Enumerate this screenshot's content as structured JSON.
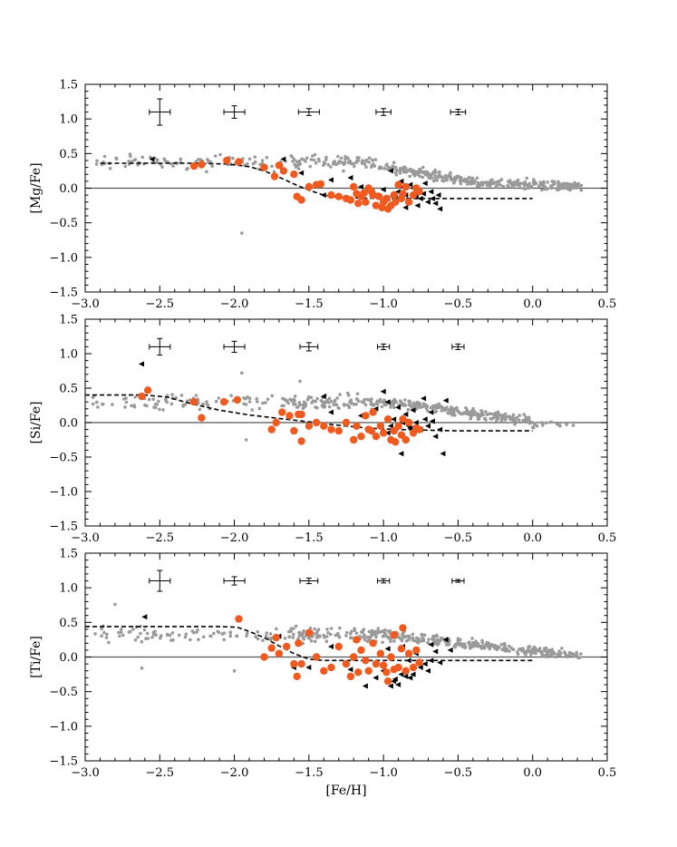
{
  "figure": {
    "xlabel": "[Fe/H]"
  },
  "colors": {
    "field": "#9a9a9a",
    "highlight": "#f05a1e",
    "triangles": "#000000",
    "zero_line": "#555555",
    "axis": "#000000"
  },
  "chart_data": [
    {
      "type": "scatter",
      "ylabel": "[Mg/Fe]",
      "xlim": [
        -3.0,
        0.5
      ],
      "ylim": [
        -1.5,
        1.5
      ],
      "x_ticks": [
        -3.0,
        -2.5,
        -2.0,
        -1.5,
        -1.0,
        -0.5,
        0.0,
        0.5
      ],
      "x_tick_labels": [
        "−3.0",
        "−2.5",
        "−2.0",
        "−1.5",
        "−1.0",
        "−0.5",
        "0.0",
        "0.5"
      ],
      "y_ticks": [
        -1.5,
        -1.0,
        -0.5,
        0.0,
        0.5,
        1.0,
        1.5
      ],
      "y_tick_labels": [
        "−1.5",
        "−1.0",
        "−0.5",
        "0.0",
        "0.5",
        "1.0",
        "1.5"
      ],
      "errorbars": [
        {
          "x": -2.5,
          "y": 1.1,
          "xerr": 0.07,
          "yerr": 0.19
        },
        {
          "x": -2.0,
          "y": 1.1,
          "xerr": 0.07,
          "yerr": 0.09
        },
        {
          "x": -1.5,
          "y": 1.1,
          "xerr": 0.07,
          "yerr": 0.05
        },
        {
          "x": -1.0,
          "y": 1.1,
          "xerr": 0.05,
          "yerr": 0.05
        },
        {
          "x": -0.5,
          "y": 1.1,
          "xerr": 0.05,
          "yerr": 0.04
        }
      ],
      "model_curve": {
        "x": [
          -2.9,
          -2.6,
          -2.3,
          -2.05,
          -1.9,
          -1.8,
          -1.7,
          -1.6,
          -1.5,
          -1.4,
          -1.3,
          -1.2,
          -1.0,
          -0.8,
          -0.6,
          -0.4,
          -0.2,
          0.0
        ],
        "y": [
          0.36,
          0.36,
          0.36,
          0.35,
          0.31,
          0.25,
          0.16,
          0.06,
          -0.03,
          -0.1,
          -0.13,
          -0.14,
          -0.15,
          -0.15,
          -0.15,
          -0.15,
          -0.15,
          -0.15
        ]
      },
      "highlight_points": {
        "x": [
          -2.27,
          -2.22,
          -2.05,
          -1.97,
          -1.8,
          -1.73,
          -1.7,
          -1.67,
          -1.58,
          -1.55,
          -1.5,
          -1.45,
          -1.42,
          -1.35,
          -1.3,
          -1.25,
          -1.2,
          -1.18,
          -1.15,
          -1.12,
          -1.1,
          -1.08,
          -1.05,
          -1.03,
          -1.0,
          -0.98,
          -0.95,
          -0.93,
          -0.9,
          -0.88,
          -0.85,
          -0.83,
          -0.8,
          -0.78,
          -0.76,
          -1.22,
          -1.17,
          -1.07,
          -0.97,
          -0.92,
          -0.87,
          -1.6,
          -1.13,
          -1.01
        ],
        "y": [
          0.32,
          0.34,
          0.4,
          0.38,
          0.3,
          0.17,
          0.33,
          0.25,
          -0.12,
          -0.17,
          0.02,
          0.05,
          0.06,
          -0.1,
          -0.12,
          -0.15,
          0.02,
          -0.08,
          -0.12,
          -0.2,
          0.0,
          -0.05,
          -0.25,
          -0.12,
          -0.2,
          -0.15,
          -0.25,
          -0.1,
          0.05,
          -0.15,
          0.02,
          -0.2,
          -0.1,
          0.0,
          -0.05,
          -0.17,
          -0.22,
          -0.1,
          -0.3,
          -0.2,
          -0.08,
          0.2,
          -0.07,
          -0.28
        ]
      },
      "triangle_points": {
        "x": [
          -2.55,
          -1.67,
          -1.55,
          -1.35,
          -1.15,
          -1.05,
          -1.0,
          -0.97,
          -0.93,
          -0.9,
          -0.87,
          -0.85,
          -0.83,
          -0.8,
          -0.78,
          -0.75,
          -0.73,
          -0.7,
          -0.68,
          -0.65,
          -0.62,
          -1.4,
          -0.95,
          -0.88,
          -0.82,
          -0.77,
          -0.72,
          -0.67,
          -0.85,
          -0.92,
          -1.22,
          -0.63
        ],
        "y": [
          0.42,
          0.42,
          0.22,
          0.12,
          0.02,
          -0.1,
          -0.02,
          -0.15,
          -0.2,
          -0.05,
          0.02,
          -0.1,
          -0.17,
          0.0,
          -0.12,
          -0.15,
          -0.08,
          -0.2,
          -0.05,
          -0.22,
          -0.3,
          -0.1,
          0.25,
          0.1,
          0.05,
          -0.25,
          0.07,
          -0.15,
          -0.28,
          -0.12,
          0.15,
          -0.1
        ]
      }
    },
    {
      "type": "scatter",
      "ylabel": "[Si/Fe]",
      "xlim": [
        -3.0,
        0.5
      ],
      "ylim": [
        -1.5,
        1.5
      ],
      "x_ticks": [
        -3.0,
        -2.5,
        -2.0,
        -1.5,
        -1.0,
        -0.5,
        0.0,
        0.5
      ],
      "x_tick_labels": [
        "−3.0",
        "−2.5",
        "−2.0",
        "−1.5",
        "−1.0",
        "−0.5",
        "0.0",
        "0.5"
      ],
      "y_ticks": [
        -1.5,
        -1.0,
        -0.5,
        0.0,
        0.5,
        1.0,
        1.5
      ],
      "y_tick_labels": [
        "−1.5",
        "−1.0",
        "−0.5",
        "0.0",
        "0.5",
        "1.0",
        "1.5"
      ],
      "errorbars": [
        {
          "x": -2.5,
          "y": 1.1,
          "xerr": 0.07,
          "yerr": 0.12
        },
        {
          "x": -2.0,
          "y": 1.1,
          "xerr": 0.07,
          "yerr": 0.08
        },
        {
          "x": -1.5,
          "y": 1.1,
          "xerr": 0.06,
          "yerr": 0.06
        },
        {
          "x": -1.0,
          "y": 1.1,
          "xerr": 0.04,
          "yerr": 0.04
        },
        {
          "x": -0.5,
          "y": 1.1,
          "xerr": 0.04,
          "yerr": 0.04
        }
      ],
      "model_curve": {
        "x": [
          -3.0,
          -2.6,
          -2.45,
          -2.3,
          -2.1,
          -1.9,
          -1.7,
          -1.5,
          -1.3,
          -1.1,
          -0.9,
          -0.7,
          -0.5,
          -0.3,
          -0.1,
          0.0
        ],
        "y": [
          0.4,
          0.4,
          0.37,
          0.28,
          0.18,
          0.11,
          0.06,
          0.01,
          -0.04,
          -0.08,
          -0.1,
          -0.11,
          -0.12,
          -0.12,
          -0.12,
          -0.12
        ]
      },
      "highlight_points": {
        "x": [
          -2.62,
          -2.58,
          -2.27,
          -2.22,
          -2.07,
          -1.98,
          -1.75,
          -1.72,
          -1.68,
          -1.63,
          -1.6,
          -1.57,
          -1.55,
          -1.5,
          -1.45,
          -1.4,
          -1.35,
          -1.3,
          -1.25,
          -1.2,
          -1.18,
          -1.15,
          -1.12,
          -1.1,
          -1.07,
          -1.05,
          -1.02,
          -1.0,
          -0.97,
          -0.95,
          -0.93,
          -0.9,
          -0.88,
          -0.85,
          -0.83,
          -0.8,
          -0.78,
          -0.76,
          -0.92,
          -0.87,
          -1.08,
          -1.55
        ],
        "y": [
          0.38,
          0.47,
          0.3,
          0.07,
          0.3,
          0.33,
          -0.1,
          0.0,
          0.15,
          0.1,
          -0.12,
          0.12,
          -0.27,
          -0.05,
          0.0,
          -0.05,
          -0.1,
          -0.12,
          0.0,
          -0.25,
          -0.05,
          -0.2,
          0.1,
          -0.1,
          0.15,
          -0.2,
          -0.05,
          -0.15,
          0.05,
          -0.25,
          -0.12,
          -0.05,
          -0.18,
          -0.25,
          0.0,
          -0.15,
          -0.08,
          -0.1,
          -0.28,
          0.05,
          -0.12,
          0.12
        ]
      },
      "triangle_points": {
        "x": [
          -2.62,
          -1.4,
          -1.35,
          -1.15,
          -1.05,
          -1.0,
          -0.97,
          -0.93,
          -0.9,
          -0.87,
          -0.85,
          -0.83,
          -0.8,
          -0.78,
          -0.75,
          -0.72,
          -0.7,
          -0.67,
          -0.65,
          -0.62,
          -0.6,
          -0.58,
          -0.97,
          -0.88,
          -0.82,
          -0.73,
          -0.68,
          -0.85,
          -0.95
        ],
        "y": [
          0.85,
          0.38,
          0.15,
          0.1,
          0.2,
          0.45,
          0.3,
          0.05,
          0.22,
          0.0,
          0.12,
          -0.05,
          0.18,
          0.0,
          -0.1,
          0.05,
          -0.05,
          0.02,
          -0.2,
          -0.1,
          -0.45,
          0.32,
          -0.15,
          -0.45,
          -0.08,
          0.35,
          0.15,
          0.02,
          -0.05
        ]
      }
    },
    {
      "type": "scatter",
      "ylabel": "[Ti/Fe]",
      "xlim": [
        -3.0,
        0.5
      ],
      "ylim": [
        -1.5,
        1.5
      ],
      "x_ticks": [
        -3.0,
        -2.5,
        -2.0,
        -1.5,
        -1.0,
        -0.5,
        0.0,
        0.5
      ],
      "x_tick_labels": [
        "−3.0",
        "−2.5",
        "−2.0",
        "−1.5",
        "−1.0",
        "−0.5",
        "0.0",
        "0.5"
      ],
      "y_ticks": [
        -1.5,
        -1.0,
        -0.5,
        0.0,
        0.5,
        1.0,
        1.5
      ],
      "y_tick_labels": [
        "−1.5",
        "−1.0",
        "−0.5",
        "0.0",
        "0.5",
        "1.0",
        "1.5"
      ],
      "errorbars": [
        {
          "x": -2.5,
          "y": 1.1,
          "xerr": 0.07,
          "yerr": 0.15
        },
        {
          "x": -2.0,
          "y": 1.1,
          "xerr": 0.07,
          "yerr": 0.06
        },
        {
          "x": -1.5,
          "y": 1.1,
          "xerr": 0.06,
          "yerr": 0.04
        },
        {
          "x": -1.0,
          "y": 1.1,
          "xerr": 0.04,
          "yerr": 0.03
        },
        {
          "x": -0.5,
          "y": 1.1,
          "xerr": 0.04,
          "yerr": 0.02
        }
      ],
      "model_curve": {
        "x": [
          -3.0,
          -2.6,
          -2.3,
          -2.1,
          -1.98,
          -1.9,
          -1.8,
          -1.7,
          -1.6,
          -1.5,
          -1.4,
          -1.2,
          -1.0,
          -0.8,
          -0.6,
          -0.4,
          -0.2,
          0.0
        ],
        "y": [
          0.44,
          0.44,
          0.44,
          0.44,
          0.43,
          0.37,
          0.28,
          0.16,
          0.05,
          -0.03,
          -0.05,
          -0.05,
          -0.05,
          -0.05,
          -0.05,
          -0.05,
          -0.05,
          -0.05
        ]
      },
      "highlight_points": {
        "x": [
          -1.97,
          -1.8,
          -1.75,
          -1.72,
          -1.7,
          -1.65,
          -1.6,
          -1.58,
          -1.55,
          -1.5,
          -1.45,
          -1.4,
          -1.35,
          -1.3,
          -1.25,
          -1.22,
          -1.2,
          -1.17,
          -1.15,
          -1.12,
          -1.1,
          -1.07,
          -1.05,
          -1.02,
          -1.0,
          -0.98,
          -0.95,
          -0.93,
          -0.9,
          -0.88,
          -0.85,
          -0.83,
          -0.8,
          -0.78,
          -0.76,
          -0.87,
          -1.18,
          -0.93,
          -1.57,
          -0.97
        ],
        "y": [
          0.55,
          0.0,
          0.13,
          0.28,
          0.05,
          0.15,
          -0.1,
          -0.28,
          -0.1,
          0.35,
          0.0,
          -0.2,
          -0.15,
          0.15,
          -0.1,
          -0.28,
          0.0,
          -0.22,
          0.1,
          -0.05,
          -0.2,
          0.2,
          -0.1,
          0.05,
          -0.12,
          -0.22,
          0.0,
          0.32,
          -0.15,
          0.12,
          -0.2,
          0.05,
          -0.15,
          0.1,
          -0.08,
          0.42,
          0.25,
          -0.18,
          0.2,
          -0.35
        ]
      },
      "triangle_points": {
        "x": [
          -2.6,
          -1.7,
          -1.6,
          -1.5,
          -1.35,
          -1.12,
          -1.05,
          -1.0,
          -0.97,
          -0.93,
          -0.9,
          -0.87,
          -0.85,
          -0.83,
          -0.8,
          -0.78,
          -0.75,
          -0.72,
          -0.7,
          -0.68,
          -0.65,
          -0.62,
          -0.58,
          -0.55,
          -0.95,
          -0.88,
          -0.82,
          -1.22,
          -0.68,
          -0.92
        ],
        "y": [
          0.58,
          0.3,
          -0.15,
          -0.15,
          0.15,
          -0.42,
          -0.3,
          -0.2,
          0.12,
          -0.35,
          -0.4,
          0.15,
          -0.28,
          -0.05,
          -0.25,
          0.05,
          -0.15,
          -0.1,
          -0.2,
          0.18,
          0.08,
          -0.08,
          0.25,
          0.1,
          -0.42,
          -0.25,
          -0.3,
          -0.18,
          -0.05,
          -0.32
        ]
      }
    }
  ]
}
